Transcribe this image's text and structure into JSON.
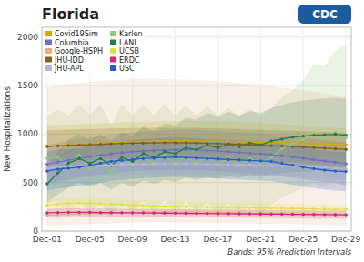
{
  "chart_data": {
    "type": "line",
    "title": "Florida",
    "y_label": "New Hospitalizations",
    "annotations": [
      "Bands: 95% Prediction Intervals",
      "CDC"
    ],
    "categories": [
      "Dec-01",
      null,
      null,
      null,
      "Dec-05",
      null,
      null,
      null,
      "Dec-09",
      null,
      null,
      null,
      "Dec-13",
      null,
      null,
      null,
      "Dec-17",
      null,
      null,
      null,
      "Dec-21",
      null,
      null,
      null,
      "Dec-25",
      null,
      null,
      null,
      "Dec-29"
    ],
    "ylim": [
      0,
      2100
    ],
    "yticks": [
      0,
      500,
      1000,
      1500,
      2000
    ],
    "grid": true,
    "legend": "upper left",
    "series": [
      {
        "name": "Covid19Sim",
        "color": "#d4a800",
        "values": [
          875,
          880,
          885,
          890,
          895,
          905,
          910,
          915,
          918,
          922,
          925,
          928,
          930,
          932,
          930,
          928,
          925,
          922,
          920,
          917,
          915,
          912,
          910,
          907,
          905,
          902,
          898,
          893,
          888
        ],
        "lower": [
          660,
          668,
          675,
          682,
          690,
          698,
          705,
          710,
          715,
          720,
          724,
          727,
          728,
          728,
          726,
          724,
          720,
          716,
          712,
          708,
          703,
          698,
          693,
          687,
          681,
          675,
          668,
          660,
          651
        ],
        "upper": [
          1090,
          1095,
          1098,
          1102,
          1105,
          1112,
          1116,
          1122,
          1124,
          1126,
          1130,
          1133,
          1135,
          1138,
          1136,
          1133,
          1130,
          1127,
          1123,
          1118,
          1113,
          1108,
          1102,
          1096,
          1090,
          1083,
          1074,
          1064,
          1053
        ]
      },
      {
        "name": "Karlen",
        "color": "#90c878",
        "values": [
          750,
          762,
          670,
          785,
          645,
          762,
          595,
          748,
          678,
          758,
          698,
          778,
          698,
          768,
          698,
          768,
          678,
          758,
          678,
          748,
          698,
          758,
          848,
          898,
          948,
          998,
          958,
          1018,
          958
        ],
        "lower": [
          290,
          305,
          195,
          315,
          175,
          295,
          145,
          295,
          195,
          305,
          195,
          315,
          175,
          305,
          175,
          305,
          165,
          295,
          155,
          275,
          165,
          275,
          345,
          395,
          445,
          495,
          455,
          515,
          455
        ],
        "upper": [
          1190,
          1250,
          1190,
          1305,
          1195,
          1305,
          1095,
          1305,
          1195,
          1305,
          1195,
          1305,
          1195,
          1291,
          1191,
          1281,
          1191,
          1271,
          1191,
          1261,
          1191,
          1261,
          1381,
          1451,
          1561,
          1721,
          1701,
          1861,
          1921
        ]
      },
      {
        "name": "Columbia",
        "color": "#7070c0",
        "values": [
          690,
          710,
          730,
          752,
          768,
          782,
          795,
          808,
          818,
          825,
          830,
          835,
          838,
          840,
          836,
          830,
          824,
          817,
          810,
          803,
          796,
          787,
          776,
          764,
          750,
          736,
          722,
          708,
          694
        ],
        "lower": [
          490,
          510,
          530,
          552,
          568,
          582,
          595,
          608,
          618,
          624,
          628,
          631,
          633,
          634,
          630,
          624,
          617,
          609,
          601,
          593,
          585,
          575,
          563,
          550,
          536,
          521,
          506,
          491,
          476
        ],
        "upper": [
          890,
          910,
          930,
          952,
          968,
          982,
          995,
          1008,
          1018,
          1026,
          1032,
          1039,
          1043,
          1046,
          1042,
          1036,
          1031,
          1025,
          1019,
          1013,
          1007,
          999,
          989,
          978,
          964,
          951,
          938,
          925,
          912
        ]
      },
      {
        "name": "LANL",
        "color": "#287850",
        "values": [
          488,
          598,
          698,
          748,
          698,
          748,
          678,
          758,
          718,
          798,
          758,
          818,
          798,
          858,
          838,
          888,
          858,
          898,
          868,
          908,
          888,
          928,
          948,
          968,
          978,
          988,
          993,
          998,
          988
        ],
        "lower": [
          295,
          375,
          448,
          498,
          455,
          498,
          428,
          498,
          455,
          518,
          488,
          528,
          508,
          548,
          528,
          558,
          538,
          568,
          548,
          578,
          558,
          588,
          598,
          608,
          613,
          618,
          620,
          623,
          612
        ],
        "upper": [
          675,
          818,
          948,
          998,
          938,
          998,
          928,
          1018,
          978,
          1078,
          1028,
          1108,
          1088,
          1168,
          1148,
          1218,
          1178,
          1228,
          1188,
          1238,
          1218,
          1268,
          1298,
          1328,
          1343,
          1358,
          1366,
          1373,
          1363
        ]
      },
      {
        "name": "Google-HSPH",
        "color": "#e8b080",
        "values": [
          165,
          168,
          172,
          175,
          179,
          183,
          187,
          191,
          193,
          196,
          197,
          198,
          198,
          198,
          197,
          195,
          193,
          191,
          189,
          187,
          185,
          183,
          181,
          179,
          177,
          175,
          174,
          172,
          171
        ],
        "lower": [
          60,
          62,
          65,
          68,
          72,
          76,
          80,
          84,
          87,
          90,
          92,
          93,
          92,
          90,
          88,
          86,
          84,
          82,
          80,
          78,
          76,
          74,
          72,
          70,
          68,
          66,
          64,
          62,
          60
        ],
        "upper": [
          1480,
          1500,
          1515,
          1525,
          1535,
          1545,
          1555,
          1563,
          1565,
          1567,
          1567,
          1565,
          1563,
          1560,
          1555,
          1550,
          1542,
          1535,
          1525,
          1515,
          1505,
          1493,
          1480,
          1466,
          1451,
          1435,
          1418,
          1400,
          1382
        ]
      },
      {
        "name": "UCSB",
        "color": "#e0e050",
        "values": [
          268,
          278,
          288,
          288,
          288,
          283,
          278,
          273,
          268,
          263,
          258,
          256,
          254,
          252,
          250,
          248,
          246,
          244,
          242,
          240,
          238,
          236,
          234,
          232,
          230,
          228,
          226,
          224,
          222
        ],
        "lower": [
          218,
          226,
          233,
          233,
          232,
          228,
          224,
          220,
          216,
          212,
          208,
          206,
          204,
          202,
          200,
          198,
          196,
          194,
          192,
          190,
          188,
          186,
          184,
          182,
          180,
          178,
          176,
          174,
          172
        ],
        "upper": [
          318,
          330,
          343,
          343,
          344,
          338,
          332,
          326,
          320,
          314,
          308,
          306,
          304,
          302,
          300,
          298,
          296,
          294,
          292,
          290,
          288,
          286,
          284,
          282,
          280,
          278,
          276,
          274,
          272
        ]
      },
      {
        "name": "JHU-IDD",
        "color": "#806020",
        "values": [
          872,
          877,
          882,
          886,
          890,
          895,
          899,
          903,
          905,
          907,
          909,
          910,
          910,
          909,
          907,
          904,
          901,
          897,
          893,
          889,
          885,
          880,
          875,
          870,
          865,
          859,
          854,
          848,
          842
        ],
        "lower": [
          705,
          712,
          718,
          724,
          730,
          736,
          741,
          746,
          749,
          752,
          754,
          755,
          755,
          753,
          751,
          748,
          744,
          740,
          736,
          731,
          726,
          721,
          715,
          708,
          701,
          694,
          687,
          679,
          671
        ],
        "upper": [
          1039,
          1042,
          1046,
          1048,
          1050,
          1054,
          1057,
          1060,
          1061,
          1062,
          1064,
          1065,
          1065,
          1065,
          1063,
          1060,
          1058,
          1054,
          1050,
          1047,
          1044,
          1039,
          1035,
          1032,
          1029,
          1024,
          1021,
          1017,
          1013
        ]
      },
      {
        "name": "ERDC",
        "color": "#d02878",
        "values": [
          188,
          191,
          193,
          193,
          192,
          191,
          190,
          189,
          188,
          187,
          186,
          185,
          184,
          183,
          182,
          181,
          180,
          179,
          178,
          177,
          176,
          175,
          174,
          173,
          172,
          171,
          170,
          169,
          168
        ],
        "lower": [
          148,
          150,
          152,
          152,
          151,
          150,
          149,
          148,
          147,
          146,
          145,
          144,
          143,
          142,
          141,
          140,
          139,
          138,
          137,
          136,
          135,
          134,
          133,
          132,
          131,
          130,
          129,
          128,
          127
        ],
        "upper": [
          228,
          232,
          234,
          234,
          233,
          232,
          231,
          230,
          229,
          228,
          227,
          226,
          225,
          224,
          223,
          222,
          221,
          220,
          219,
          218,
          217,
          216,
          215,
          214,
          213,
          212,
          211,
          210,
          209
        ]
      },
      {
        "name": "JHU-APL",
        "color": "#c0b0d8",
        "values": [
          648,
          657,
          663,
          668,
          673,
          677,
          681,
          685,
          688,
          690,
          692,
          693,
          693,
          693,
          692,
          690,
          688,
          685,
          682,
          679,
          676,
          673,
          669,
          665,
          661,
          657,
          652,
          648,
          643
        ],
        "lower": [
          548,
          556,
          562,
          566,
          570,
          574,
          578,
          582,
          584,
          586,
          587,
          588,
          588,
          587,
          585,
          583,
          580,
          577,
          574,
          571,
          568,
          565,
          561,
          557,
          553,
          548,
          543,
          538,
          532
        ],
        "upper": [
          748,
          758,
          764,
          770,
          776,
          780,
          784,
          788,
          792,
          794,
          797,
          798,
          798,
          799,
          799,
          797,
          796,
          793,
          790,
          787,
          784,
          781,
          777,
          773,
          769,
          766,
          761,
          758,
          754
        ]
      },
      {
        "name": "USC",
        "color": "#2060c8",
        "values": [
          618,
          638,
          648,
          658,
          678,
          698,
          718,
          728,
          738,
          748,
          753,
          758,
          763,
          758,
          753,
          748,
          743,
          738,
          733,
          728,
          723,
          718,
          698,
          678,
          658,
          643,
          628,
          618,
          613
        ],
        "lower": [
          418,
          438,
          453,
          463,
          478,
          498,
          518,
          528,
          538,
          546,
          551,
          556,
          560,
          555,
          551,
          546,
          541,
          536,
          531,
          526,
          521,
          516,
          498,
          478,
          458,
          443,
          428,
          418,
          413
        ],
        "upper": [
          818,
          838,
          843,
          853,
          878,
          898,
          918,
          928,
          938,
          950,
          955,
          960,
          966,
          961,
          955,
          950,
          945,
          940,
          935,
          930,
          925,
          920,
          898,
          878,
          858,
          843,
          828,
          818,
          813
        ]
      }
    ]
  }
}
